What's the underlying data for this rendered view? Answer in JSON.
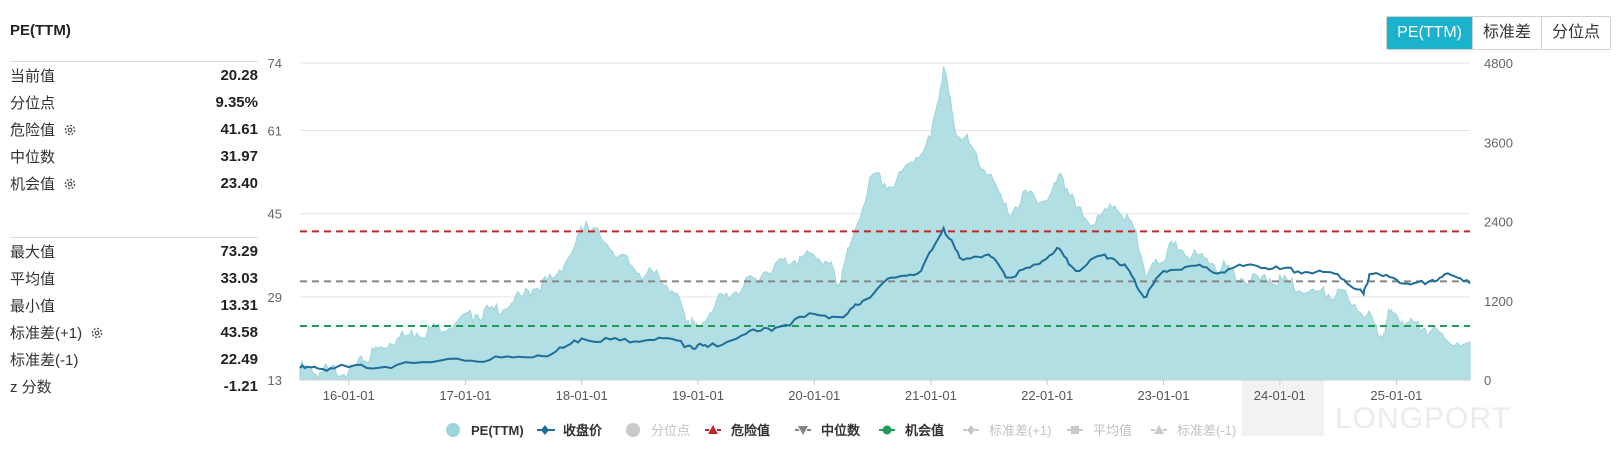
{
  "header": {
    "title": "PE(TTM)"
  },
  "tabs": [
    {
      "label": "PE(TTM)",
      "active": true
    },
    {
      "label": "标准差",
      "active": false
    },
    {
      "label": "分位点",
      "active": false
    }
  ],
  "stats_top": [
    {
      "label": "当前值",
      "value": "20.28",
      "gear": false
    },
    {
      "label": "分位点",
      "value": "9.35%",
      "gear": false
    },
    {
      "label": "危险值",
      "value": "41.61",
      "gear": true
    },
    {
      "label": "中位数",
      "value": "31.97",
      "gear": false
    },
    {
      "label": "机会值",
      "value": "23.40",
      "gear": true
    }
  ],
  "stats_bottom": [
    {
      "label": "最大值",
      "value": "73.29",
      "gear": false
    },
    {
      "label": "平均值",
      "value": "33.03",
      "gear": false
    },
    {
      "label": "最小值",
      "value": "13.31",
      "gear": false
    },
    {
      "label": "标准差(+1)",
      "value": "43.58",
      "gear": true
    },
    {
      "label": "标准差(-1)",
      "value": "22.49",
      "gear": false
    },
    {
      "label": "z 分数",
      "value": "-1.21",
      "gear": false
    }
  ],
  "watermark": "LONGPORT",
  "colors": {
    "pe_fill": "#b2dfe4",
    "pe_line": "#9fd4db",
    "price": "#1f6e99",
    "danger": "#c0282d",
    "median": "#858585",
    "opportunity": "#229a5a",
    "accent": "#1ab2cc",
    "inactive": "#c9c9c9"
  },
  "chart_data": {
    "type": "area",
    "x_ticks": [
      "16-01-01",
      "17-01-01",
      "18-01-01",
      "19-01-01",
      "20-01-01",
      "21-01-01",
      "22-01-01",
      "23-01-01",
      "24-01-01",
      "25-01-01"
    ],
    "x_range": [
      "2015-08-01",
      "2025-08-20"
    ],
    "y_left": {
      "ticks": [
        13,
        29,
        45,
        61,
        74
      ],
      "range": [
        13,
        74
      ]
    },
    "y_right": {
      "ticks": [
        0,
        1200,
        2400,
        3600,
        4800
      ],
      "range": [
        0,
        4800
      ]
    },
    "reference_lines": [
      {
        "name": "危险值",
        "value": 41.61,
        "color": "#c0282d",
        "style": "dashed"
      },
      {
        "name": "中位数",
        "value": 31.97,
        "color": "#858585",
        "style": "dashed"
      },
      {
        "name": "机会值",
        "value": 23.4,
        "color": "#229a5a",
        "style": "dashed"
      }
    ],
    "series": [
      {
        "name": "PE(TTM)",
        "axis": "left",
        "type": "area",
        "points": [
          [
            "2015-08-01",
            15.5
          ],
          [
            "2015-09-15",
            14.2
          ],
          [
            "2015-11-01",
            15.0
          ],
          [
            "2016-01-01",
            14.7
          ],
          [
            "2016-02-15",
            16.5
          ],
          [
            "2016-04-01",
            19.0
          ],
          [
            "2016-06-01",
            21.0
          ],
          [
            "2016-08-01",
            22.0
          ],
          [
            "2016-10-01",
            23.0
          ],
          [
            "2016-12-01",
            24.0
          ],
          [
            "2017-02-01",
            25.5
          ],
          [
            "2017-04-01",
            26.5
          ],
          [
            "2017-06-01",
            28.0
          ],
          [
            "2017-08-01",
            30.5
          ],
          [
            "2017-10-01",
            32.5
          ],
          [
            "2017-12-01",
            37.5
          ],
          [
            "2018-01-15",
            43.5
          ],
          [
            "2018-03-01",
            40.5
          ],
          [
            "2018-05-01",
            37.0
          ],
          [
            "2018-07-01",
            33.5
          ],
          [
            "2018-09-01",
            33.0
          ],
          [
            "2018-10-15",
            30.0
          ],
          [
            "2018-12-01",
            24.5
          ],
          [
            "2019-01-01",
            23.0
          ],
          [
            "2019-03-01",
            28.5
          ],
          [
            "2019-05-01",
            30.0
          ],
          [
            "2019-07-01",
            32.5
          ],
          [
            "2019-09-01",
            35.5
          ],
          [
            "2019-11-01",
            36.0
          ],
          [
            "2020-01-01",
            37.0
          ],
          [
            "2020-02-15",
            35.5
          ],
          [
            "2020-03-20",
            31.5
          ],
          [
            "2020-05-01",
            40.5
          ],
          [
            "2020-07-01",
            52.5
          ],
          [
            "2020-09-01",
            50.0
          ],
          [
            "2020-11-01",
            55.0
          ],
          [
            "2021-01-01",
            59.5
          ],
          [
            "2021-02-10",
            73.3
          ],
          [
            "2021-03-15",
            62.0
          ],
          [
            "2021-05-01",
            58.5
          ],
          [
            "2021-07-01",
            52.5
          ],
          [
            "2021-09-01",
            45.0
          ],
          [
            "2021-11-01",
            49.0
          ],
          [
            "2022-01-01",
            47.5
          ],
          [
            "2022-02-15",
            52.5
          ],
          [
            "2022-04-01",
            46.0
          ],
          [
            "2022-06-01",
            43.0
          ],
          [
            "2022-08-01",
            46.5
          ],
          [
            "2022-10-01",
            42.0
          ],
          [
            "2022-11-10",
            33.0
          ],
          [
            "2022-12-15",
            35.5
          ],
          [
            "2023-02-01",
            39.0
          ],
          [
            "2023-04-01",
            37.0
          ],
          [
            "2023-06-01",
            35.5
          ],
          [
            "2023-08-01",
            34.0
          ],
          [
            "2023-10-01",
            32.0
          ],
          [
            "2023-12-01",
            32.5
          ],
          [
            "2024-02-01",
            31.5
          ],
          [
            "2024-04-01",
            30.0
          ],
          [
            "2024-06-01",
            29.5
          ],
          [
            "2024-08-01",
            29.0
          ],
          [
            "2024-10-01",
            25.5
          ],
          [
            "2024-11-15",
            21.5
          ],
          [
            "2024-12-15",
            26.5
          ],
          [
            "2025-02-01",
            24.0
          ],
          [
            "2025-04-01",
            23.0
          ],
          [
            "2025-06-01",
            21.0
          ],
          [
            "2025-08-20",
            20.3
          ]
        ]
      },
      {
        "name": "收盘价",
        "axis": "right",
        "type": "line",
        "points": [
          [
            "2015-08-01",
            180
          ],
          [
            "2015-10-01",
            170
          ],
          [
            "2016-01-01",
            195
          ],
          [
            "2016-06-01",
            230
          ],
          [
            "2017-01-01",
            290
          ],
          [
            "2017-06-01",
            340
          ],
          [
            "2017-10-01",
            400
          ],
          [
            "2018-01-01",
            630
          ],
          [
            "2018-05-01",
            600
          ],
          [
            "2018-09-01",
            640
          ],
          [
            "2018-12-01",
            520
          ],
          [
            "2019-02-01",
            500
          ],
          [
            "2019-06-01",
            700
          ],
          [
            "2019-09-01",
            790
          ],
          [
            "2020-01-01",
            1000
          ],
          [
            "2020-04-01",
            950
          ],
          [
            "2020-06-01",
            1200
          ],
          [
            "2020-09-01",
            1550
          ],
          [
            "2020-12-01",
            1650
          ],
          [
            "2021-02-10",
            2300
          ],
          [
            "2021-04-01",
            1850
          ],
          [
            "2021-07-01",
            1900
          ],
          [
            "2021-09-01",
            1550
          ],
          [
            "2021-12-01",
            1750
          ],
          [
            "2022-02-01",
            2000
          ],
          [
            "2022-04-01",
            1650
          ],
          [
            "2022-07-01",
            1900
          ],
          [
            "2022-09-01",
            1750
          ],
          [
            "2022-11-01",
            1250
          ],
          [
            "2023-01-01",
            1650
          ],
          [
            "2023-04-01",
            1730
          ],
          [
            "2023-07-01",
            1630
          ],
          [
            "2023-10-01",
            1750
          ],
          [
            "2024-01-01",
            1680
          ],
          [
            "2024-04-01",
            1630
          ],
          [
            "2024-07-01",
            1600
          ],
          [
            "2024-09-20",
            1300
          ],
          [
            "2024-10-08",
            1600
          ],
          [
            "2025-01-01",
            1520
          ],
          [
            "2025-04-01",
            1450
          ],
          [
            "2025-06-01",
            1600
          ],
          [
            "2025-08-20",
            1460
          ]
        ]
      }
    ],
    "legend": [
      {
        "name": "PE(TTM)",
        "marker": "circle",
        "color": "#9fd4db",
        "active": true
      },
      {
        "name": "收盘价",
        "marker": "line-diamond",
        "color": "#1f6e99",
        "active": true
      },
      {
        "name": "分位点",
        "marker": "circle",
        "color": "#c9c9c9",
        "active": false
      },
      {
        "name": "危险值",
        "marker": "dash-triangle",
        "color": "#c0282d",
        "active": true
      },
      {
        "name": "中位数",
        "marker": "dash-triangle-down",
        "color": "#858585",
        "active": true
      },
      {
        "name": "机会值",
        "marker": "dash-circle",
        "color": "#229a5a",
        "active": true
      },
      {
        "name": "标准差(+1)",
        "marker": "dash-diamond",
        "color": "#c9c9c9",
        "active": false
      },
      {
        "name": "平均值",
        "marker": "dash-square",
        "color": "#c9c9c9",
        "active": false
      },
      {
        "name": "标准差(-1)",
        "marker": "dash-triangle",
        "color": "#c9c9c9",
        "active": false
      }
    ],
    "legend_position": "bottom-center",
    "grid": true
  }
}
